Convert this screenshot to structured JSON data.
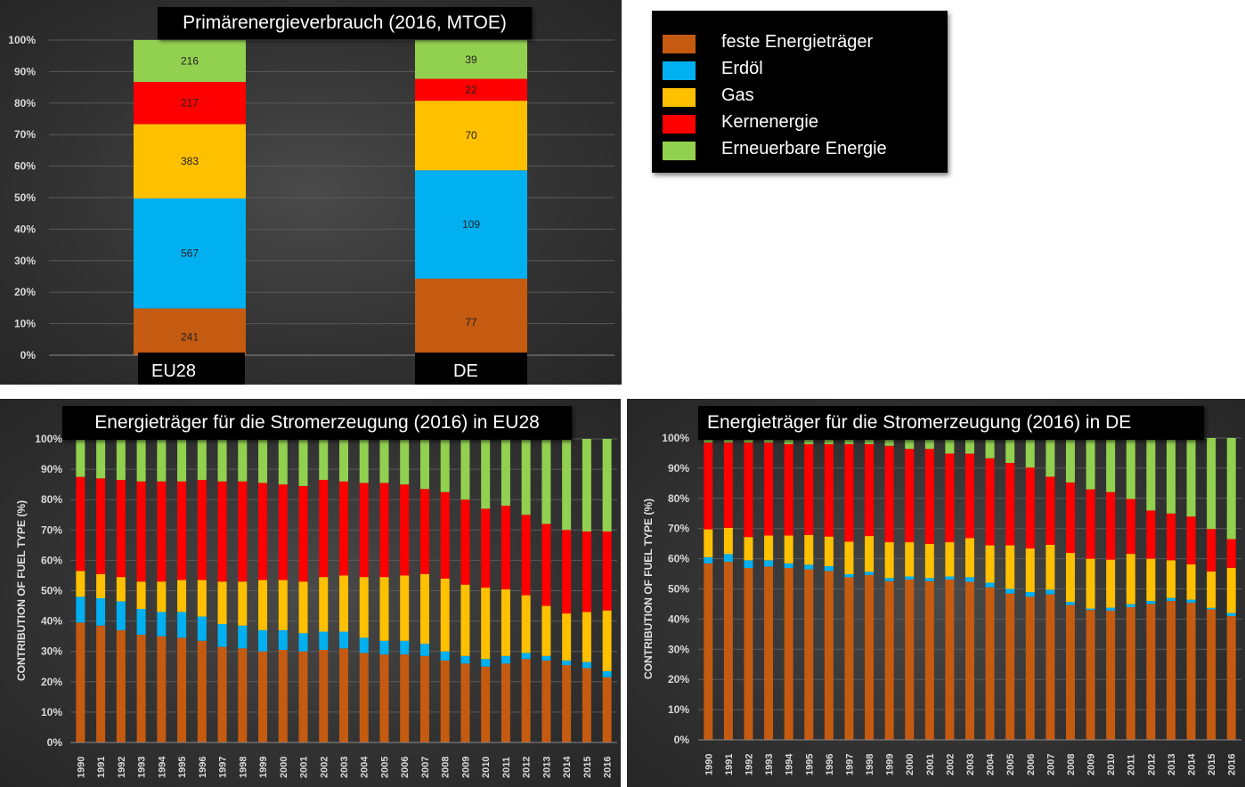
{
  "legend": {
    "items": [
      {
        "label": "feste Energieträger",
        "color": "#C55A11"
      },
      {
        "label": "Erdöl",
        "color": "#00B0F0"
      },
      {
        "label": " Gas",
        "color": "#FFC000"
      },
      {
        "label": " Kernenergie",
        "color": "#FF0000"
      },
      {
        "label": " Erneuerbare Energie",
        "color": "#92D050"
      }
    ]
  },
  "series_colors": [
    "#C55A11",
    "#00B0F0",
    "#FFC000",
    "#FF0000",
    "#92D050"
  ],
  "chart_data": [
    {
      "type": "bar",
      "stacked": "percent",
      "title": "Primärenergieverbrauch (2016, MTOE)",
      "categories": [
        "EU28",
        "DE"
      ],
      "y_ticks": [
        "0%",
        "10%",
        "20%",
        "30%",
        "40%",
        "50%",
        "60%",
        "70%",
        "80%",
        "90%",
        "100%"
      ],
      "ylim": [
        0,
        100
      ],
      "series": [
        {
          "name": "feste Energieträger",
          "values": [
            241,
            77
          ]
        },
        {
          "name": "Erdöl",
          "values": [
            567,
            109
          ]
        },
        {
          "name": "Gas",
          "values": [
            383,
            70
          ]
        },
        {
          "name": "Kernenergie",
          "values": [
            217,
            22
          ]
        },
        {
          "name": "Erneuerbare Energie",
          "values": [
            216,
            39
          ]
        }
      ]
    },
    {
      "type": "bar",
      "stacked": "percent",
      "title": "Energieträger für die Stromerzeugung (2016) in EU28",
      "ylabel": "CONTRIBUTION OF FUEL TYPE (%)",
      "y_ticks": [
        "0%",
        "10%",
        "20%",
        "30%",
        "40%",
        "50%",
        "60%",
        "70%",
        "80%",
        "90%",
        "100%"
      ],
      "ylim": [
        0,
        100
      ],
      "categories": [
        "1990",
        "1991",
        "1992",
        "1993",
        "1994",
        "1995",
        "1996",
        "1997",
        "1998",
        "1999",
        "2000",
        "2001",
        "2002",
        "2003",
        "2004",
        "2005",
        "2006",
        "2007",
        "2008",
        "2009",
        "2010",
        "2011",
        "2012",
        "2013",
        "2014",
        "2015",
        "2016"
      ],
      "series": [
        {
          "name": "feste Energieträger",
          "values": [
            39.5,
            38.5,
            37,
            35.5,
            35,
            34.5,
            33.5,
            31.5,
            31,
            30,
            30.5,
            30,
            30.5,
            31,
            29.5,
            29,
            29,
            28.5,
            27,
            26,
            25,
            26,
            27.5,
            27,
            25.5,
            24.5,
            21.5
          ]
        },
        {
          "name": "Erdöl",
          "values": [
            8.5,
            9,
            9.5,
            8.5,
            8,
            8.5,
            8,
            7.5,
            7.5,
            7,
            6.5,
            6,
            6,
            5.5,
            5,
            4.5,
            4.5,
            4,
            3,
            2.5,
            2.5,
            2.5,
            2,
            1.5,
            1.5,
            2,
            2
          ]
        },
        {
          "name": "Gas",
          "values": [
            8.5,
            8,
            8,
            9,
            10,
            10.5,
            12,
            14,
            14.5,
            16.5,
            16.5,
            17,
            18,
            18.5,
            20,
            21,
            21.5,
            23,
            24,
            23.5,
            23.5,
            22,
            19,
            16.5,
            15.5,
            16.5,
            20
          ]
        },
        {
          "name": "Kernenergie",
          "values": [
            31,
            31.5,
            32,
            33,
            33,
            32.5,
            33,
            33,
            33,
            32,
            31.5,
            31.5,
            32,
            31,
            31,
            31,
            30,
            28,
            28.5,
            28,
            26,
            27.5,
            26.5,
            27,
            27.5,
            26.5,
            26
          ]
        },
        {
          "name": "Erneuerbare Energie",
          "values": [
            12.5,
            13,
            13.5,
            14,
            14,
            14,
            13.5,
            14,
            14,
            14.5,
            15,
            15.5,
            13.5,
            14,
            14.5,
            14.5,
            15,
            16.5,
            17.5,
            20,
            23,
            22,
            25,
            28,
            30,
            30.5,
            30.5
          ]
        }
      ]
    },
    {
      "type": "bar",
      "stacked": "percent",
      "title": "Energieträger für die Stromerzeugung (2016) in DE",
      "ylabel": "CONTRIBUTION OF FUEL TYPE (%)",
      "y_ticks": [
        "0%",
        "10%",
        "20%",
        "30%",
        "40%",
        "50%",
        "60%",
        "70%",
        "80%",
        "90%",
        "100%"
      ],
      "ylim": [
        0,
        100
      ],
      "categories": [
        "1990",
        "1991",
        "1992",
        "1993",
        "1994",
        "1995",
        "1996",
        "1997",
        "1998",
        "1999",
        "2000",
        "2001",
        "2002",
        "2003",
        "2004",
        "2005",
        "2006",
        "2007",
        "2008",
        "2009",
        "2010",
        "2011",
        "2012",
        "2013",
        "2014",
        "2015",
        "2016"
      ],
      "series": [
        {
          "name": "feste Energieträger",
          "values": [
            57,
            57.5,
            55.5,
            56,
            55.5,
            54.5,
            54,
            52.5,
            53,
            51,
            51.5,
            51,
            51.5,
            50.5,
            49,
            47,
            46,
            47,
            44,
            43,
            43,
            43.5,
            45,
            46,
            44.5,
            43,
            41
          ]
        },
        {
          "name": "Erdöl",
          "values": [
            2,
            2.5,
            2.5,
            2,
            1.5,
            1.5,
            1.5,
            1,
            1,
            1,
            1,
            1,
            1,
            1.5,
            1.5,
            1.5,
            1.5,
            1.5,
            1,
            0.5,
            1,
            1,
            1,
            1,
            1,
            0.5,
            1
          ]
        },
        {
          "name": "Gas",
          "values": [
            9,
            8.5,
            7.5,
            8,
            9,
            9.5,
            9.5,
            10.5,
            11.5,
            11.5,
            11,
            11,
            11,
            12.5,
            12,
            14,
            14,
            14.5,
            16,
            16.5,
            16,
            16.5,
            14,
            12.5,
            11.5,
            12,
            15
          ]
        },
        {
          "name": "Kernenergie",
          "values": [
            28,
            27.5,
            30.5,
            30,
            29.5,
            29,
            29.5,
            31.5,
            29.5,
            31,
            30,
            30.5,
            28.5,
            27,
            28,
            26.5,
            26,
            22,
            23,
            23,
            22.5,
            18,
            16,
            15.5,
            15.5,
            14,
            9.5
          ]
        },
        {
          "name": "Erneuerbare Energie",
          "values": [
            1.5,
            1.5,
            1.5,
            1.5,
            2,
            2,
            2,
            2,
            2,
            2.5,
            3.5,
            3.5,
            5,
            5,
            6.5,
            8,
            9.5,
            12.5,
            14.5,
            17,
            18,
            20,
            24,
            25,
            25.5,
            30,
            33.5
          ]
        }
      ]
    }
  ]
}
